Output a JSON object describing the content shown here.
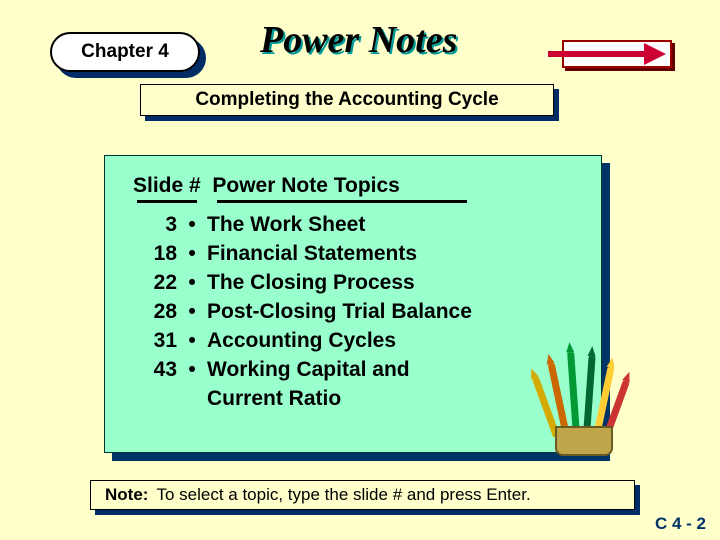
{
  "colors": {
    "background": "#ffffcc",
    "panel_bg": "#99ffcc",
    "shadow": "#002b66",
    "arrow": "#cc0033",
    "footer_text": "#003366"
  },
  "header": {
    "chapter_label": "Chapter 4",
    "power_notes": "Power Notes",
    "subtitle": "Completing the Accounting Cycle"
  },
  "topics": {
    "heading_slide": "Slide #",
    "heading_topics": "Power Note Topics",
    "rows": [
      {
        "num": "3",
        "text": "The Work Sheet"
      },
      {
        "num": "18",
        "text": "Financial Statements"
      },
      {
        "num": "22",
        "text": "The Closing Process"
      },
      {
        "num": "28",
        "text": "Post-Closing Trial Balance"
      },
      {
        "num": "31",
        "text": "Accounting Cycles"
      },
      {
        "num": "43",
        "text": "Working Capital and"
      }
    ],
    "continuation": "Current Ratio"
  },
  "note": {
    "lead": "Note:",
    "text": "To select a topic, type the slide # and press Enter."
  },
  "footer": {
    "label": "C 4 - 2"
  }
}
